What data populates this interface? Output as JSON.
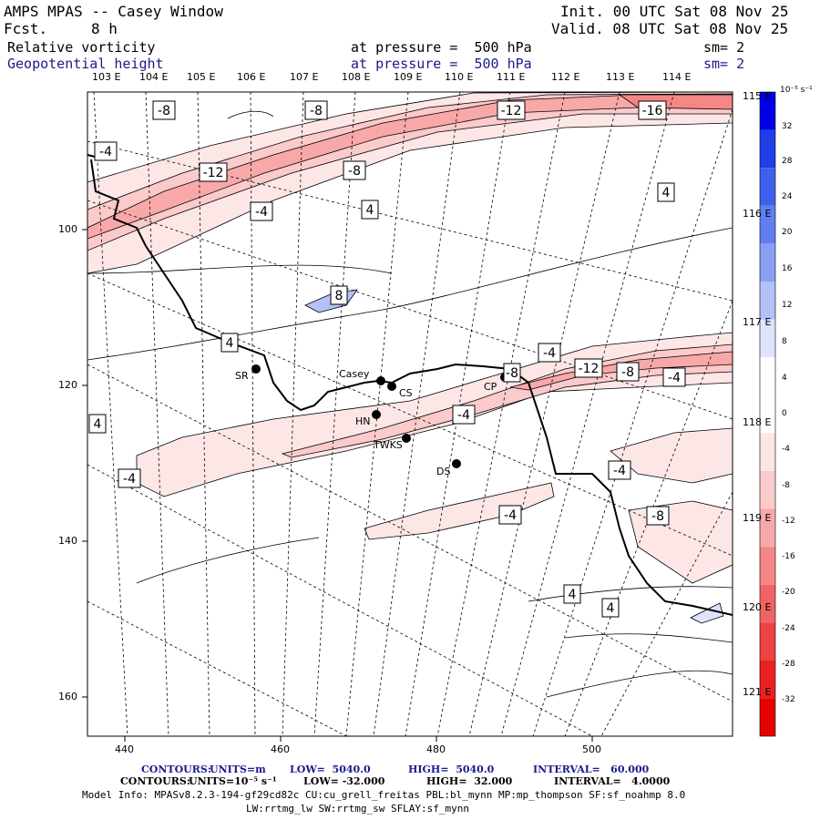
{
  "header": {
    "title": "AMPS MPAS -- Casey Window",
    "fcst_label": "Fcst.",
    "fcst_value": "8 h",
    "init": "Init. 00 UTC Sat 08 Nov 25",
    "valid": "Valid. 08 UTC Sat 08 Nov 25",
    "field1_name": "Relative vorticity",
    "field1_level": "at pressure =  500 hPa",
    "field1_sm": "sm= 2",
    "field2_name": "Geopotential height",
    "field2_level": "at pressure =  500 hPa",
    "field2_sm": "sm= 2"
  },
  "longitude_labels_top": [
    "103 E",
    "104 E",
    "105 E",
    "106 E",
    "107 E",
    "108 E",
    "109 E",
    "110 E",
    "111 E",
    "112 E",
    "113 E",
    "114 E"
  ],
  "longitude_labels_right": [
    "115 E",
    "116 E",
    "117 E",
    "118 E",
    "119 E",
    "120 E",
    "121 E"
  ],
  "x_axis_ticks": [
    "440",
    "460",
    "480",
    "500"
  ],
  "y_axis_ticks": [
    "100",
    "120",
    "140",
    "160"
  ],
  "colorbar": {
    "unit": "10⁻⁵ s⁻¹",
    "labels": [
      "32",
      "28",
      "24",
      "20",
      "16",
      "12",
      "8",
      "4",
      "0",
      "-4",
      "-8",
      "-12",
      "-16",
      "-20",
      "-24",
      "-28",
      "-32"
    ],
    "colors": [
      "#0000e6",
      "#1f3fe8",
      "#3f5fec",
      "#5f7ff0",
      "#8a9ff4",
      "#b4c0f8",
      "#dde3fc",
      "#ffffff",
      "#ffffff",
      "#fde6e6",
      "#fbcaca",
      "#f8a8a8",
      "#f58686",
      "#f26464",
      "#ef4242",
      "#ec2020",
      "#e60000"
    ]
  },
  "stations": [
    {
      "name": "SR"
    },
    {
      "name": "Casey"
    },
    {
      "name": "CS"
    },
    {
      "name": "HN"
    },
    {
      "name": "TWKS"
    },
    {
      "name": "DS"
    },
    {
      "name": "CP"
    }
  ],
  "contour_labels": [
    "-8",
    "-8",
    "-12",
    "-16",
    "-4",
    "-12",
    "-8",
    "4",
    "-4",
    "4",
    "8",
    "4",
    "-4",
    "-8",
    "-12",
    "-8",
    "-4",
    "4",
    "-4",
    "-4",
    "-4",
    "-8",
    "-4",
    "4",
    "4"
  ],
  "footer": {
    "line1_prefix": "CONTOURS:",
    "line1_units": "UNITS=m",
    "line1_low": "LOW=  5040.0",
    "line1_high": "HIGH=  5040.0",
    "line1_interval": "INTERVAL=   60.000",
    "line2_prefix": "CONTOURS:",
    "line2_units": "UNITS=10⁻⁵ s⁻¹",
    "line2_low": "LOW= -32.000",
    "line2_high": "HIGH=  32.000",
    "line2_interval": "INTERVAL=   4.0000",
    "model_info": "Model Info: MPASv8.2.3-194-gf29cd82c CU:cu_grell_freitas PBL:bl_mynn MP:mp_thompson SF:sf_noahmp 8.0",
    "model_info2": "LW:rrtmg_lw SW:rrtmg_sw SFLAY:sf_mynn"
  }
}
